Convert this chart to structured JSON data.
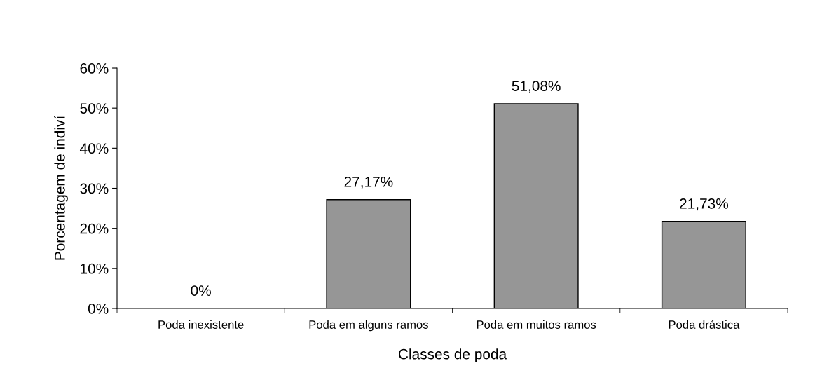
{
  "chart_data": {
    "type": "bar",
    "xlabel": "Classes de poda",
    "ylabel": "Porcentagem de indiví",
    "categories": [
      "Poda inexistente",
      "Poda em alguns ramos",
      "Poda em muitos ramos",
      "Poda drástica"
    ],
    "values": [
      0,
      27.17,
      51.08,
      21.73
    ],
    "color": "#969696",
    "value_labels": [
      "0%",
      "27,17%",
      "51,08%",
      "21,73%"
    ],
    "ylim": [
      0,
      60
    ],
    "yticks": [
      {
        "value": 0,
        "label": "0%"
      },
      {
        "value": 10,
        "label": "10%"
      },
      {
        "value": 20,
        "label": "20%"
      },
      {
        "value": 30,
        "label": "30%"
      },
      {
        "value": 40,
        "label": "40%"
      },
      {
        "value": 50,
        "label": "50%"
      },
      {
        "value": 60,
        "label": "60%"
      }
    ],
    "grid": false,
    "legend": false
  }
}
